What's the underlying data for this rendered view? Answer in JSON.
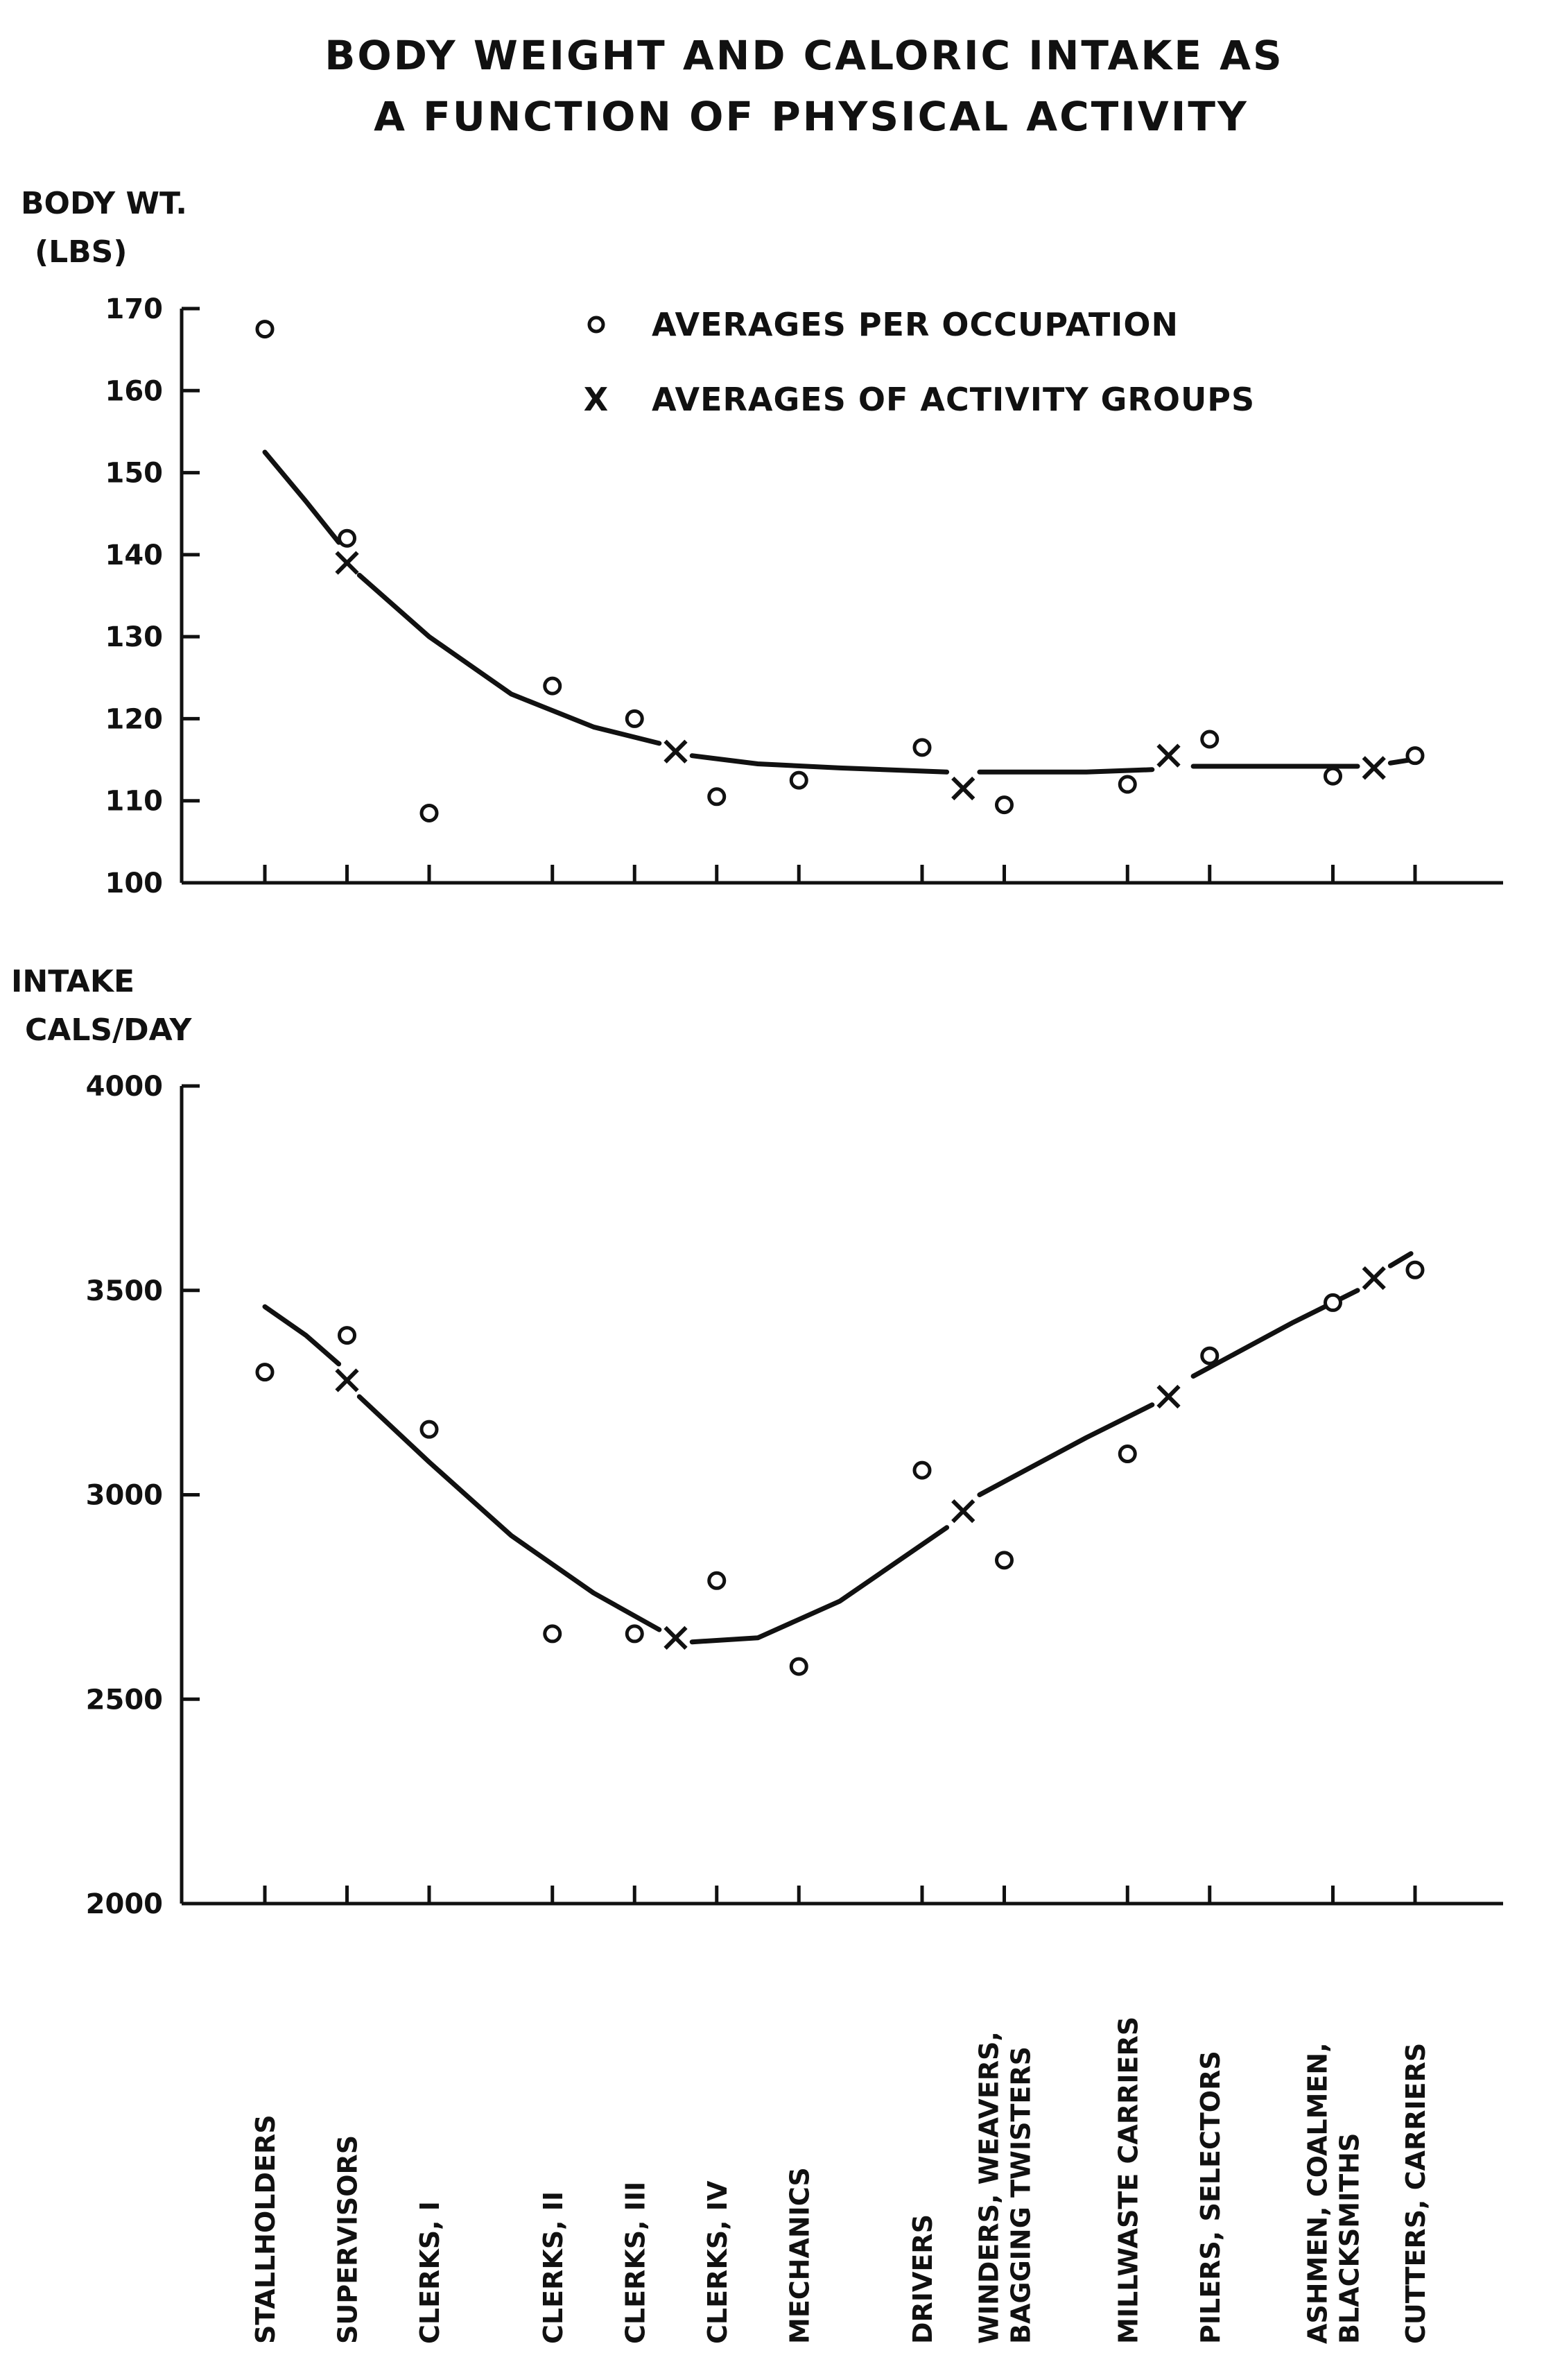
{
  "chart_data": {
    "type": "scatter",
    "title": "BODY WEIGHT AND CALORIC INTAKE AS",
    "subtitle": "A FUNCTION OF PHYSICAL ACTIVITY",
    "categories": [
      [
        "STALLHOLDERS"
      ],
      [
        "SUPERVISORS"
      ],
      [
        "CLERKS, I"
      ],
      [
        "CLERKS, II"
      ],
      [
        "CLERKS, III"
      ],
      [
        "CLERKS, IV"
      ],
      [
        "MECHANICS"
      ],
      [
        "DRIVERS"
      ],
      [
        "WINDERS, WEAVERS,",
        "BAGGING TWISTERS"
      ],
      [
        "MILLWASTE CARRIERS"
      ],
      [
        "PILERS, SELECTORS"
      ],
      [
        "ASHMEN, COALMEN,",
        "BLACKSMITHS"
      ],
      [
        "CUTTERS, CARRIERS"
      ]
    ],
    "category_positions": [
      1,
      2,
      3,
      4.5,
      5.5,
      6.5,
      7.5,
      9,
      10,
      11.5,
      12.5,
      14,
      15
    ],
    "legend": {
      "occupation_symbol": "o",
      "occupation_label": "AVERAGES PER OCCUPATION",
      "group_symbol": "X",
      "group_label": "AVERAGES OF ACTIVITY GROUPS",
      "placement": "top-right"
    },
    "panels": [
      {
        "ylabel": [
          "BODY WT.",
          "(LBS)"
        ],
        "ylim": [
          100,
          170
        ],
        "yticks": [
          100,
          110,
          120,
          130,
          140,
          150,
          160,
          170
        ],
        "occupation_averages": [
          167.5,
          142,
          108.5,
          124,
          120,
          110.5,
          112.5,
          116.5,
          109.5,
          112,
          117.5,
          113,
          115.5
        ],
        "activity_group_averages": [
          {
            "x": 2,
            "y": 139
          },
          {
            "x": 6,
            "y": 116
          },
          {
            "x": 9.5,
            "y": 111.5
          },
          {
            "x": 12,
            "y": 115.5
          },
          {
            "x": 14.5,
            "y": 114
          }
        ],
        "trend_segments": [
          [
            {
              "x": 1,
              "y": 152.5
            },
            {
              "x": 1.5,
              "y": 146.5
            },
            {
              "x": 1.9,
              "y": 141.5
            }
          ],
          [
            {
              "x": 2.15,
              "y": 137.5
            },
            {
              "x": 3,
              "y": 130
            },
            {
              "x": 4,
              "y": 123
            },
            {
              "x": 5,
              "y": 119
            },
            {
              "x": 5.8,
              "y": 117
            }
          ],
          [
            {
              "x": 6.2,
              "y": 115.5
            },
            {
              "x": 7,
              "y": 114.5
            },
            {
              "x": 8,
              "y": 114
            },
            {
              "x": 9.3,
              "y": 113.5
            }
          ],
          [
            {
              "x": 9.7,
              "y": 113.5
            },
            {
              "x": 11,
              "y": 113.5
            },
            {
              "x": 11.8,
              "y": 113.8
            }
          ],
          [
            {
              "x": 12.3,
              "y": 114.2
            },
            {
              "x": 13.5,
              "y": 114.2
            },
            {
              "x": 14.3,
              "y": 114.2
            }
          ],
          [
            {
              "x": 14.7,
              "y": 114.6
            },
            {
              "x": 14.95,
              "y": 115
            }
          ]
        ]
      },
      {
        "ylabel": [
          "INTAKE",
          "CALS/DAY"
        ],
        "ylim": [
          2000,
          4000
        ],
        "yticks": [
          2000,
          2500,
          3000,
          3500,
          4000
        ],
        "occupation_averages": [
          3300,
          3390,
          3160,
          2660,
          2660,
          2790,
          2580,
          3060,
          2840,
          3100,
          3340,
          3470,
          3550
        ],
        "activity_group_averages": [
          {
            "x": 2,
            "y": 3280
          },
          {
            "x": 6,
            "y": 2650
          },
          {
            "x": 9.5,
            "y": 2960
          },
          {
            "x": 12,
            "y": 3240
          },
          {
            "x": 14.5,
            "y": 3530
          }
        ],
        "trend_segments": [
          [
            {
              "x": 1,
              "y": 3460
            },
            {
              "x": 1.5,
              "y": 3390
            },
            {
              "x": 1.9,
              "y": 3320
            }
          ],
          [
            {
              "x": 2.15,
              "y": 3240
            },
            {
              "x": 3,
              "y": 3080
            },
            {
              "x": 4,
              "y": 2900
            },
            {
              "x": 5,
              "y": 2760
            },
            {
              "x": 5.8,
              "y": 2670
            }
          ],
          [
            {
              "x": 6.2,
              "y": 2640
            },
            {
              "x": 7,
              "y": 2650
            },
            {
              "x": 8,
              "y": 2740
            },
            {
              "x": 9.3,
              "y": 2920
            }
          ],
          [
            {
              "x": 9.7,
              "y": 3000
            },
            {
              "x": 11,
              "y": 3140
            },
            {
              "x": 11.8,
              "y": 3220
            }
          ],
          [
            {
              "x": 12.3,
              "y": 3290
            },
            {
              "x": 13.5,
              "y": 3420
            },
            {
              "x": 14.3,
              "y": 3500
            }
          ],
          [
            {
              "x": 14.7,
              "y": 3560
            },
            {
              "x": 14.95,
              "y": 3590
            }
          ]
        ]
      }
    ]
  }
}
